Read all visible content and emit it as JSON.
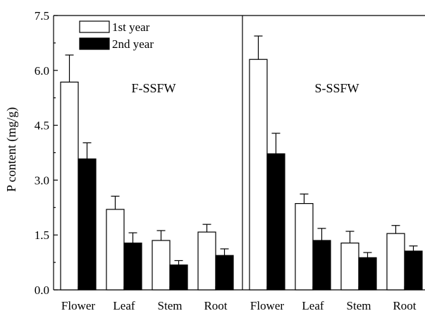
{
  "chart_data": {
    "type": "bar",
    "ylabel": "P content (mg/g)",
    "ylim": [
      0,
      7.5
    ],
    "yticks": [
      "0.0",
      "1.5",
      "3.0",
      "4.5",
      "6.0",
      "7.5"
    ],
    "legend": {
      "placement": "top-left",
      "entries": [
        {
          "name": "1st year",
          "color": "#ffffff"
        },
        {
          "name": "2nd year",
          "color": "#000000"
        }
      ]
    },
    "panels": [
      {
        "label": "F-SSFW",
        "categories": [
          "Flower",
          "Leaf",
          "Stem",
          "Root"
        ],
        "series": [
          {
            "name": "1st year",
            "color": "#ffffff",
            "values": [
              5.68,
              2.2,
              1.35,
              1.58
            ],
            "errors": [
              0.74,
              0.36,
              0.27,
              0.21
            ]
          },
          {
            "name": "2nd year",
            "color": "#000000",
            "values": [
              3.58,
              1.28,
              0.68,
              0.94
            ],
            "errors": [
              0.44,
              0.28,
              0.12,
              0.18
            ]
          }
        ]
      },
      {
        "label": "S-SSFW",
        "categories": [
          "Flower",
          "Leaf",
          "Stem",
          "Root"
        ],
        "series": [
          {
            "name": "1st year",
            "color": "#ffffff",
            "values": [
              6.3,
              2.36,
              1.28,
              1.54
            ],
            "errors": [
              0.64,
              0.26,
              0.32,
              0.22
            ]
          },
          {
            "name": "2nd year",
            "color": "#000000",
            "values": [
              3.72,
              1.35,
              0.88,
              1.06
            ],
            "errors": [
              0.56,
              0.33,
              0.14,
              0.14
            ]
          }
        ]
      }
    ]
  }
}
